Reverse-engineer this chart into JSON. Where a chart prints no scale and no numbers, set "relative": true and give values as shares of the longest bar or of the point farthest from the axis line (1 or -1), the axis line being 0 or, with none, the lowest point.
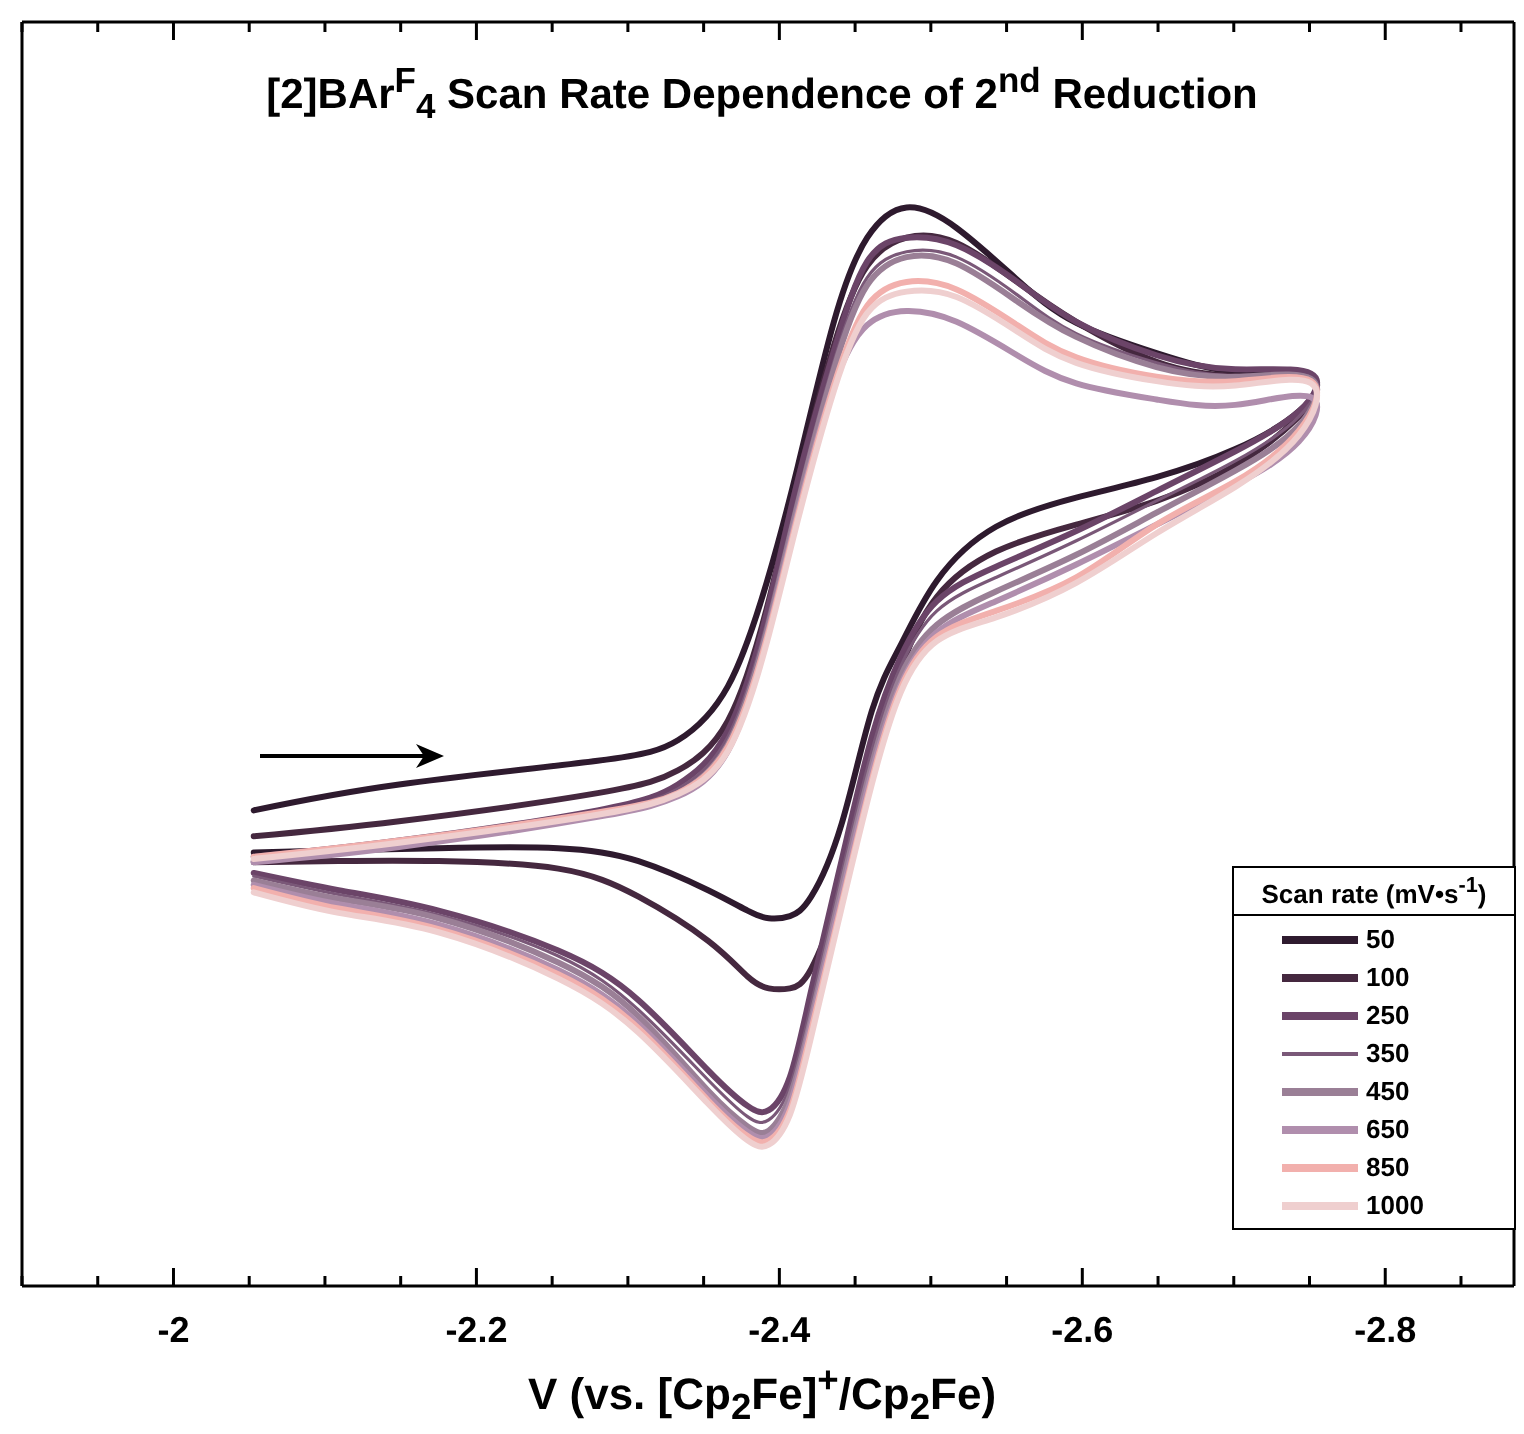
{
  "chart_data": {
    "type": "line",
    "title": "[2]BAr$^{F}$$_{4}$ Scan Rate Dependence of 2$^{nd}$ Reduction",
    "xlabel": "V (vs. [Cp$_{2}$Fe]$^{+}$/Cp$_{2}$Fe)",
    "legend_title": "Scan rate (mV•s$^{-1}$)",
    "legend": "bottom right",
    "relative": true,
    "xlim": [
      -1.9,
      -2.885
    ],
    "xticks": [
      {
        "value": -1.9,
        "label": null
      },
      {
        "value": -1.95,
        "label": null
      },
      -2,
      {
        "value": -2.05,
        "label": null
      },
      {
        "value": -2.1,
        "label": null
      },
      {
        "value": -2.15,
        "label": null
      },
      -2.2,
      {
        "value": -2.25,
        "label": null
      },
      {
        "value": -2.3,
        "label": null
      },
      {
        "value": -2.35,
        "label": null
      },
      -2.4,
      {
        "value": -2.45,
        "label": null
      },
      {
        "value": -2.5,
        "label": null
      },
      {
        "value": -2.55,
        "label": null
      },
      -2.6,
      {
        "value": -2.65,
        "label": null
      },
      {
        "value": -2.7,
        "label": null
      },
      {
        "value": -2.75,
        "label": null
      },
      -2.8,
      {
        "value": -2.85,
        "label": null
      }
    ],
    "x": [
      -2.053,
      -2.149,
      -2.28,
      -2.333,
      -2.366,
      -2.392,
      -2.412,
      -2.436,
      -2.458,
      -2.484,
      -2.517,
      -2.557,
      -2.596,
      -2.649,
      -2.701,
      -2.751,
      -2.743,
      -2.701,
      -2.649,
      -2.596,
      -2.543,
      -2.504,
      -2.48,
      -2.461,
      -2.441,
      -2.421,
      -2.407,
      -2.393,
      -2.379,
      -2.353,
      -2.307,
      -2.254,
      -2.175,
      -2.109,
      -2.053
    ],
    "series": [
      {
        "name": "50",
        "color": "#2e1a2e",
        "values": [
          0.441,
          0.465,
          0.487,
          0.506,
          0.556,
          0.654,
          0.759,
          0.894,
          0.972,
          1.0,
          0.981,
          0.933,
          0.893,
          0.865,
          0.848,
          0.843,
          0.811,
          0.776,
          0.75,
          0.731,
          0.704,
          0.654,
          0.594,
          0.533,
          0.428,
          0.361,
          0.343,
          0.341,
          0.348,
          0.367,
          0.394,
          0.406,
          0.406,
          0.404,
          0.402
        ]
      },
      {
        "name": "100",
        "color": "#45283f",
        "values": [
          0.417,
          0.431,
          0.457,
          0.478,
          0.524,
          0.63,
          0.746,
          0.872,
          0.946,
          0.972,
          0.967,
          0.931,
          0.894,
          0.857,
          0.844,
          0.839,
          0.806,
          0.761,
          0.728,
          0.706,
          0.681,
          0.639,
          0.57,
          0.469,
          0.367,
          0.294,
          0.276,
          0.276,
          0.287,
          0.32,
          0.361,
          0.387,
          0.394,
          0.394,
          0.393
        ]
      },
      {
        "name": "250",
        "color": "#6b4468",
        "values": [
          0.398,
          0.413,
          0.441,
          0.465,
          0.515,
          0.626,
          0.746,
          0.867,
          0.95,
          0.972,
          0.965,
          0.931,
          0.894,
          0.863,
          0.85,
          0.846,
          0.811,
          0.774,
          0.737,
          0.7,
          0.667,
          0.635,
          0.583,
          0.509,
          0.394,
          0.274,
          0.194,
          0.163,
          0.167,
          0.2,
          0.265,
          0.311,
          0.348,
          0.367,
          0.383
        ]
      },
      {
        "name": "350",
        "color": "#7a5878",
        "values": [
          0.396,
          0.411,
          0.439,
          0.461,
          0.509,
          0.617,
          0.731,
          0.857,
          0.935,
          0.959,
          0.954,
          0.919,
          0.883,
          0.856,
          0.844,
          0.843,
          0.806,
          0.765,
          0.728,
          0.691,
          0.657,
          0.626,
          0.574,
          0.496,
          0.381,
          0.261,
          0.185,
          0.154,
          0.157,
          0.191,
          0.256,
          0.306,
          0.344,
          0.363,
          0.38
        ]
      },
      {
        "name": "450",
        "color": "#9a7f96",
        "values": [
          0.394,
          0.409,
          0.437,
          0.457,
          0.502,
          0.609,
          0.724,
          0.85,
          0.928,
          0.954,
          0.948,
          0.913,
          0.88,
          0.852,
          0.843,
          0.841,
          0.798,
          0.756,
          0.717,
          0.678,
          0.644,
          0.613,
          0.565,
          0.483,
          0.369,
          0.248,
          0.176,
          0.144,
          0.148,
          0.181,
          0.25,
          0.3,
          0.341,
          0.359,
          0.376
        ]
      },
      {
        "name": "650",
        "color": "#b08ead",
        "values": [
          0.393,
          0.407,
          0.435,
          0.454,
          0.496,
          0.604,
          0.717,
          0.835,
          0.891,
          0.904,
          0.894,
          0.863,
          0.837,
          0.822,
          0.817,
          0.824,
          0.783,
          0.743,
          0.706,
          0.669,
          0.635,
          0.606,
          0.557,
          0.476,
          0.361,
          0.243,
          0.169,
          0.139,
          0.143,
          0.176,
          0.243,
          0.293,
          0.335,
          0.354,
          0.372
        ]
      },
      {
        "name": "850",
        "color": "#f2b0ad",
        "values": [
          0.398,
          0.413,
          0.439,
          0.457,
          0.5,
          0.602,
          0.713,
          0.835,
          0.909,
          0.931,
          0.924,
          0.891,
          0.861,
          0.843,
          0.839,
          0.839,
          0.793,
          0.746,
          0.706,
          0.657,
          0.626,
          0.602,
          0.554,
          0.469,
          0.354,
          0.237,
          0.163,
          0.135,
          0.139,
          0.172,
          0.239,
          0.289,
          0.331,
          0.35,
          0.369
        ]
      },
      {
        "name": "1000",
        "color": "#efcfcf",
        "values": [
          0.396,
          0.411,
          0.437,
          0.456,
          0.496,
          0.598,
          0.709,
          0.83,
          0.902,
          0.922,
          0.917,
          0.885,
          0.856,
          0.839,
          0.835,
          0.837,
          0.789,
          0.741,
          0.698,
          0.652,
          0.62,
          0.598,
          0.55,
          0.465,
          0.35,
          0.231,
          0.159,
          0.131,
          0.135,
          0.169,
          0.235,
          0.285,
          0.328,
          0.346,
          0.365
        ]
      }
    ]
  }
}
